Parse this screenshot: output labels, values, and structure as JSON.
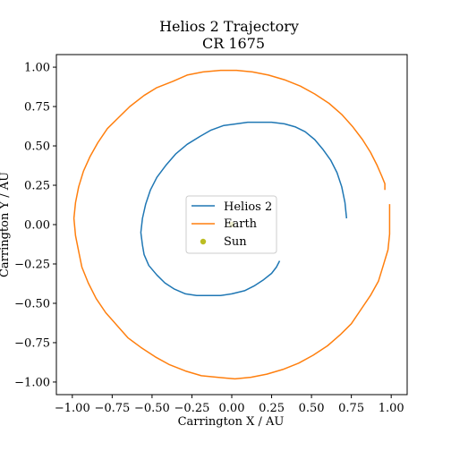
{
  "chart_data": {
    "type": "line",
    "title": "Helios 2 Trajectory",
    "subtitle": "CR 1675",
    "xlabel": "Carrington X / AU",
    "ylabel": "Carrington Y / AU",
    "xlim": [
      -1.1,
      1.1
    ],
    "ylim": [
      -1.08,
      1.08
    ],
    "xticks": [
      -1.0,
      -0.75,
      -0.5,
      -0.25,
      0.0,
      0.25,
      0.5,
      0.75,
      1.0
    ],
    "xtick_labels": [
      "−1.00",
      "−0.75",
      "−0.50",
      "−0.25",
      "0.00",
      "0.25",
      "0.50",
      "0.75",
      "1.00"
    ],
    "yticks": [
      1.0,
      0.75,
      0.5,
      0.25,
      0.0,
      -0.25,
      -0.5,
      -0.75,
      -1.0
    ],
    "ytick_labels": [
      "1.00",
      "0.75",
      "0.50",
      "0.25",
      "0.00",
      "−0.25",
      "−0.50",
      "−0.75",
      "−1.00"
    ],
    "grid": false,
    "legend_position": "center",
    "series": [
      {
        "name": "Helios 2",
        "color": "#1f77b4",
        "x": [
          0.72,
          0.71,
          0.69,
          0.66,
          0.62,
          0.57,
          0.52,
          0.46,
          0.4,
          0.33,
          0.25,
          0.18,
          0.1,
          0.03,
          -0.05,
          -0.13,
          -0.2,
          -0.28,
          -0.35,
          -0.41,
          -0.47,
          -0.51,
          -0.54,
          -0.56,
          -0.57,
          -0.56,
          -0.55,
          -0.52,
          -0.47,
          -0.42,
          -0.36,
          -0.29,
          -0.22,
          -0.15,
          -0.07,
          0.0,
          0.08,
          0.14,
          0.2,
          0.25,
          0.28,
          0.3
        ],
        "y": [
          0.04,
          0.14,
          0.24,
          0.33,
          0.41,
          0.48,
          0.54,
          0.59,
          0.62,
          0.64,
          0.65,
          0.65,
          0.65,
          0.64,
          0.63,
          0.6,
          0.56,
          0.51,
          0.45,
          0.38,
          0.3,
          0.22,
          0.13,
          0.04,
          -0.05,
          -0.13,
          -0.19,
          -0.26,
          -0.32,
          -0.37,
          -0.41,
          -0.44,
          -0.45,
          -0.45,
          -0.45,
          -0.44,
          -0.42,
          -0.39,
          -0.35,
          -0.31,
          -0.27,
          -0.23
        ]
      },
      {
        "name": "Earth",
        "color": "#ff7f0e",
        "x": [
          0.99,
          0.99,
          0.99,
          0.98,
          0.95,
          0.92,
          0.87,
          0.81,
          0.75,
          0.68,
          0.6,
          0.51,
          0.42,
          0.32,
          0.22,
          0.12,
          0.02,
          -0.09,
          -0.19,
          -0.29,
          -0.39,
          -0.48,
          -0.57,
          -0.65,
          -0.72,
          -0.79,
          -0.85,
          -0.9,
          -0.94,
          -0.96,
          -0.98,
          -0.99,
          -0.98,
          -0.96,
          -0.93,
          -0.89,
          -0.84,
          -0.78,
          -0.71,
          -0.64,
          -0.55,
          -0.47,
          -0.37,
          -0.28,
          -0.18,
          -0.07,
          0.03,
          0.13,
          0.23,
          0.33,
          0.43,
          0.52,
          0.61,
          0.69,
          0.76,
          0.82,
          0.87,
          0.91,
          0.94,
          0.96,
          0.96
        ],
        "y": [
          0.13,
          0.04,
          -0.06,
          -0.16,
          -0.26,
          -0.36,
          -0.45,
          -0.54,
          -0.63,
          -0.7,
          -0.77,
          -0.83,
          -0.88,
          -0.92,
          -0.95,
          -0.97,
          -0.98,
          -0.97,
          -0.96,
          -0.93,
          -0.89,
          -0.84,
          -0.78,
          -0.72,
          -0.64,
          -0.56,
          -0.47,
          -0.37,
          -0.27,
          -0.17,
          -0.07,
          0.04,
          0.14,
          0.24,
          0.34,
          0.43,
          0.52,
          0.61,
          0.68,
          0.75,
          0.82,
          0.87,
          0.91,
          0.95,
          0.97,
          0.98,
          0.98,
          0.97,
          0.95,
          0.92,
          0.88,
          0.83,
          0.77,
          0.7,
          0.62,
          0.54,
          0.46,
          0.38,
          0.31,
          0.26,
          0.22
        ]
      },
      {
        "name": "Sun",
        "color": "#bcbd22",
        "x": [
          0.0
        ],
        "y": [
          0.0
        ],
        "marker": "point"
      }
    ]
  }
}
